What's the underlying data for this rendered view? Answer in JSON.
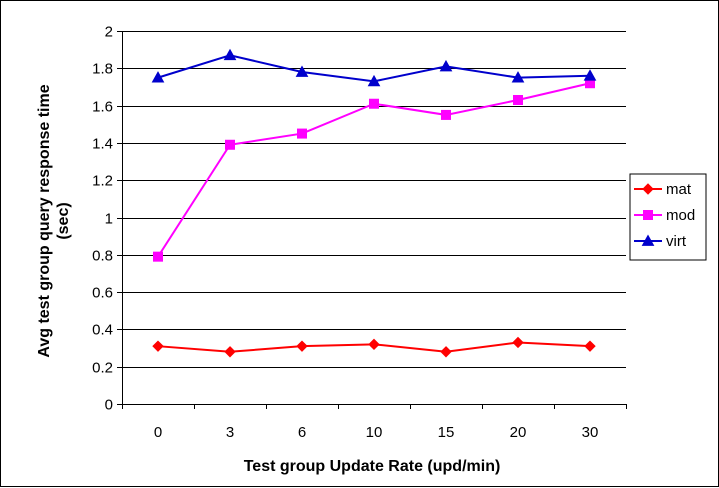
{
  "chart_data": {
    "type": "line",
    "title": "",
    "xlabel": "Test group Update Rate (upd/min)",
    "ylabel_line1": "Avg test group query response time",
    "ylabel_line2": "(sec)",
    "categories": [
      "0",
      "3",
      "6",
      "10",
      "15",
      "20",
      "30"
    ],
    "ylim": [
      0,
      2
    ],
    "ytick_step": 0.2,
    "yticks": [
      "0",
      "0.2",
      "0.4",
      "0.6",
      "0.8",
      "1",
      "1.2",
      "1.4",
      "1.6",
      "1.8",
      "2"
    ],
    "grid": true,
    "legend_position": "right",
    "series": [
      {
        "name": "mat",
        "color": "#ff0000",
        "marker": "diamond",
        "values": [
          0.31,
          0.28,
          0.31,
          0.32,
          0.28,
          0.33,
          0.31
        ]
      },
      {
        "name": "mod",
        "color": "#ff00ff",
        "marker": "square",
        "values": [
          0.79,
          1.39,
          1.45,
          1.61,
          1.55,
          1.63,
          1.72
        ]
      },
      {
        "name": "virt",
        "color": "#0000cc",
        "marker": "triangle",
        "values": [
          1.75,
          1.87,
          1.78,
          1.73,
          1.81,
          1.75,
          1.76
        ]
      }
    ]
  }
}
